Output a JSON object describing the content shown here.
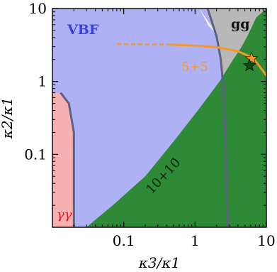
{
  "chart_data": {
    "type": "area",
    "xlabel": "κ3/κ1",
    "ylabel": "κ2/κ1",
    "x_scale": "log",
    "y_scale": "log",
    "xlim": [
      0.01,
      10
    ],
    "ylim": [
      0.01,
      10
    ],
    "x_ticks": [
      "0.1",
      "1",
      "10"
    ],
    "y_ticks": [
      "0.1",
      "1",
      "10"
    ],
    "regions": [
      {
        "label": "VBF",
        "color": "#aeb2f4"
      },
      {
        "label": "gg",
        "color": "#b8b8b8"
      },
      {
        "label": "γγ",
        "color": "#f6b0b0"
      },
      {
        "label": "10+10̄",
        "color": "#2e8a36"
      }
    ],
    "boundaries": {
      "gg_vbf": [
        [
          1.5,
          10
        ],
        [
          2.0,
          4.2
        ],
        [
          2.3,
          2.0
        ],
        [
          2.5,
          0.8
        ],
        [
          2.6,
          0.3
        ],
        [
          2.7,
          0.1
        ],
        [
          2.8,
          0.02
        ],
        [
          2.9,
          0.01
        ]
      ],
      "gamma_vbf": [
        [
          0.013,
          0.7
        ],
        [
          0.017,
          0.5
        ],
        [
          0.02,
          0.2
        ],
        [
          0.02,
          0.05
        ],
        [
          0.02,
          0.01
        ]
      ],
      "green_left": [
        [
          0.03,
          0.01
        ],
        [
          0.07,
          0.02
        ],
        [
          0.2,
          0.05
        ],
        [
          0.5,
          0.15
        ],
        [
          1.2,
          0.45
        ],
        [
          2.2,
          1.0
        ],
        [
          3.2,
          1.8
        ],
        [
          4.5,
          3.0
        ],
        [
          5.5,
          4.3
        ],
        [
          7.2,
          7.5
        ],
        [
          10,
          10
        ]
      ]
    },
    "curves": [
      {
        "name": "5+5̄",
        "color": "#f39a2a",
        "solid": [
          [
            0.45,
            3.2
          ],
          [
            1,
            3.1
          ],
          [
            2,
            2.95
          ],
          [
            4,
            2.6
          ],
          [
            6.5,
            2.1
          ],
          [
            8.5,
            1.5
          ],
          [
            10,
            1.2
          ]
        ],
        "dashed": [
          [
            0.08,
            3.25
          ],
          [
            0.45,
            3.2
          ]
        ]
      }
    ],
    "markers": [
      {
        "type": "star",
        "color": "#f39a2a",
        "x": 6.2,
        "y": 2.05
      },
      {
        "type": "star",
        "color": "#0d4a12",
        "x": 5.8,
        "y": 1.65
      }
    ],
    "annotations": [
      "VBF",
      "gg",
      "γγ",
      "10+10̄",
      "5+5̄"
    ]
  }
}
